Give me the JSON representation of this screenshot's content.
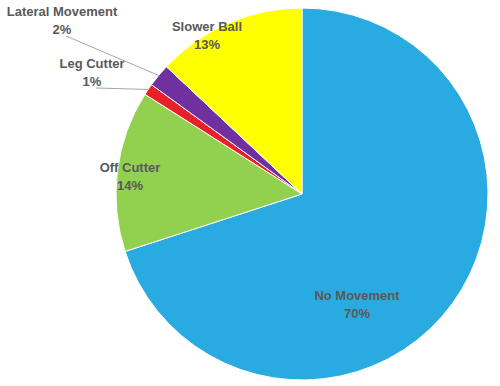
{
  "chart_data": {
    "type": "pie",
    "categories": [
      "No Movement",
      "Off Cutter",
      "Leg Cutter",
      "Lateral Movement",
      "Slower Ball"
    ],
    "values": [
      70,
      14,
      1,
      2,
      13
    ],
    "value_labels": [
      "70%",
      "14%",
      "1%",
      "2%",
      "13%"
    ],
    "colors": [
      "#29abe2",
      "#92d050",
      "#e8202a",
      "#7030a0",
      "#ffff00"
    ],
    "data_labels": true
  }
}
